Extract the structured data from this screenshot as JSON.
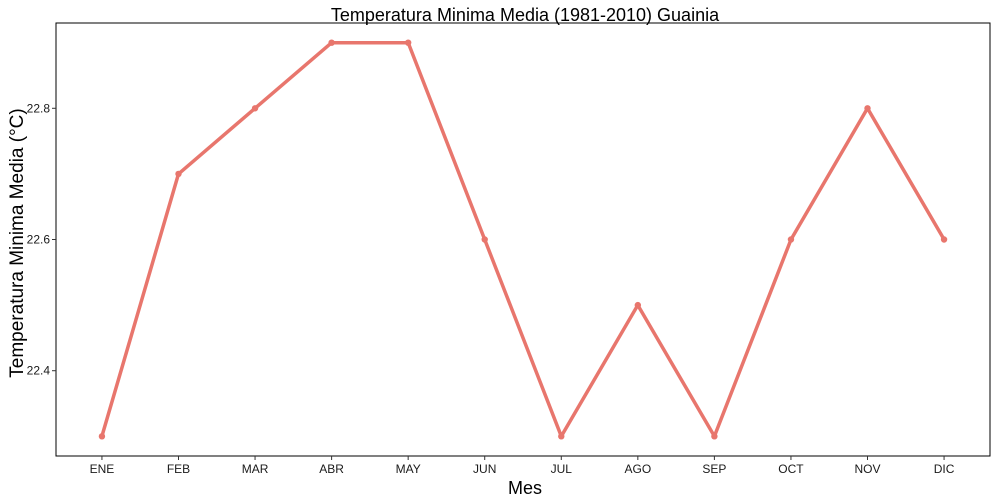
{
  "chart_data": {
    "type": "line",
    "title": "Temperatura Minima Media (1981-2010)  Guainia",
    "xlabel": "Mes",
    "ylabel": "Temperatura Minima Media  (°C)",
    "categories": [
      "ENE",
      "FEB",
      "MAR",
      "ABR",
      "MAY",
      "JUN",
      "JUL",
      "AGO",
      "SEP",
      "OCT",
      "NOV",
      "DIC"
    ],
    "series": [
      {
        "values": [
          22.3,
          22.7,
          22.8,
          22.9,
          22.9,
          22.6,
          22.3,
          22.5,
          22.3,
          22.6,
          22.8,
          22.6
        ]
      }
    ],
    "ylim": [
      22.27,
      22.93
    ],
    "yticks": [
      22.4,
      22.6,
      22.8
    ],
    "ytick_labels": [
      "22.4",
      "22.6",
      "22.8"
    ],
    "grid": false,
    "line_color": "#e8766d"
  }
}
